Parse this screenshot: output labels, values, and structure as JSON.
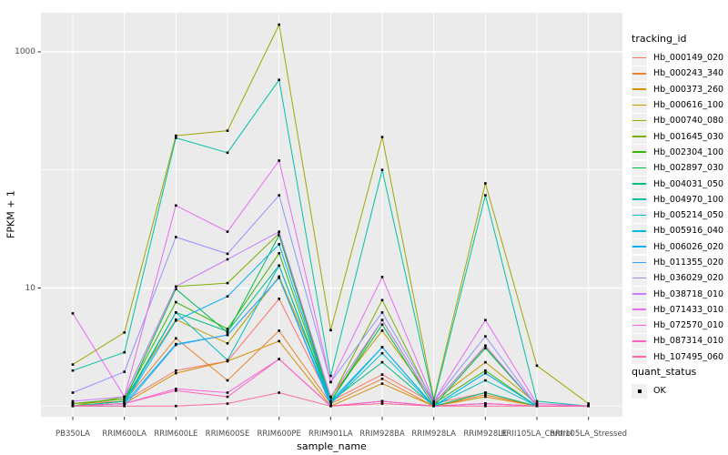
{
  "colors": {
    "panel_bg": "#EBEBEB",
    "gridline": "#FFFFFF",
    "tick_mark": "#333333",
    "tick_text": "#4D4D4D",
    "point": "#000000"
  },
  "chart_data": {
    "type": "line",
    "title": "",
    "xlabel": "sample_name",
    "ylabel": "FPKM + 1",
    "y_scale": "log10",
    "ylim": [
      1,
      2150
    ],
    "grid": true,
    "legend_position": "right",
    "legend_title": "tracking_id",
    "quant_legend": {
      "title": "quant_status",
      "ok_label": "OK"
    },
    "y_ticks": [
      {
        "label": "1000",
        "value": 1000
      },
      {
        "label": "10",
        "value": 10
      }
    ],
    "y_minor": [
      1,
      100
    ],
    "categories": [
      "PB350LA",
      "RRIM600LA",
      "RRIM600LE",
      "RRIM600SE",
      "RRIM600PE",
      "RRIM901LA",
      "RRIM928BA",
      "RRIM928LA",
      "RRIM928LE",
      "RRII105LA_Control",
      "RRII105LA_Stressed"
    ],
    "series": [
      {
        "name": "Hb_000149_020",
        "color": "#F8766D",
        "values": [
          1.05,
          1.1,
          2.0,
          2.4,
          8.1,
          1.1,
          1.85,
          1.05,
          1.3,
          1.0,
          1.0
        ]
      },
      {
        "name": "Hb_000243_340",
        "color": "#EA8331",
        "values": [
          1.0,
          1.1,
          3.75,
          1.65,
          4.35,
          1.05,
          1.7,
          1.0,
          1.25,
          1.0,
          1.0
        ]
      },
      {
        "name": "Hb_000373_260",
        "color": "#D89000",
        "values": [
          1.0,
          1.05,
          1.9,
          2.4,
          3.55,
          1.0,
          1.55,
          1.0,
          1.2,
          1.0,
          1.0
        ]
      },
      {
        "name": "Hb_000616_100",
        "color": "#C09B00",
        "values": [
          1.05,
          1.15,
          5.4,
          3.4,
          12.5,
          1.2,
          4.35,
          1.1,
          2.35,
          1.05,
          1.0
        ]
      },
      {
        "name": "Hb_000740_080",
        "color": "#A3A500",
        "values": [
          2.25,
          4.2,
          195,
          215,
          1700,
          4.4,
          190,
          1.15,
          77,
          2.2,
          1.05
        ]
      },
      {
        "name": "Hb_001645_030",
        "color": "#7CAE00",
        "values": [
          1.0,
          1.2,
          10.3,
          11.0,
          29,
          1.15,
          7.9,
          1.05,
          3.2,
          1.0,
          1.0
        ]
      },
      {
        "name": "Hb_002304_100",
        "color": "#39B600",
        "values": [
          1.05,
          1.15,
          7.6,
          4.5,
          19.7,
          1.1,
          5.35,
          1.05,
          2.0,
          1.0,
          1.0
        ]
      },
      {
        "name": "Hb_002897_030",
        "color": "#00BB4E",
        "values": [
          1.0,
          1.1,
          9.8,
          4.2,
          28,
          1.1,
          4.9,
          1.0,
          3.1,
          1.0,
          1.0
        ]
      },
      {
        "name": "Hb_004031_050",
        "color": "#00BF7D",
        "values": [
          1.0,
          1.1,
          6.2,
          4.3,
          15.5,
          1.1,
          2.35,
          1.0,
          1.3,
          1.0,
          1.0
        ]
      },
      {
        "name": "Hb_004970_100",
        "color": "#00C1A3",
        "values": [
          2.0,
          2.85,
          187,
          140,
          580,
          1.8,
          100,
          1.1,
          61,
          1.1,
          1.0
        ]
      },
      {
        "name": "Hb_005214_050",
        "color": "#00BFC4",
        "values": [
          1.0,
          1.05,
          6.2,
          2.45,
          15.5,
          1.05,
          2.8,
          1.0,
          1.65,
          1.0,
          1.0
        ]
      },
      {
        "name": "Hb_005916_040",
        "color": "#00BAE0",
        "values": [
          1.0,
          1.05,
          3.35,
          4.0,
          12.2,
          1.05,
          3.15,
          1.0,
          1.9,
          1.0,
          1.0
        ]
      },
      {
        "name": "Hb_006026_020",
        "color": "#00B0F6",
        "values": [
          1.0,
          1.05,
          5.3,
          8.5,
          23.5,
          1.1,
          3.15,
          1.0,
          1.9,
          1.0,
          1.0
        ]
      },
      {
        "name": "Hb_011355_020",
        "color": "#35A2FF",
        "values": [
          1.0,
          1.0,
          3.3,
          4.0,
          12.2,
          1.0,
          1.1,
          1.0,
          1.05,
          1.0,
          1.0
        ]
      },
      {
        "name": "Hb_036029_020",
        "color": "#9590FF",
        "values": [
          1.3,
          1.95,
          27,
          19.5,
          61,
          1.6,
          6.2,
          1.1,
          3.9,
          1.0,
          1.0
        ]
      },
      {
        "name": "Hb_038718_010",
        "color": "#C77CFF",
        "values": [
          1.1,
          1.2,
          10.3,
          17.5,
          30,
          1.2,
          5.35,
          1.05,
          3.25,
          1.0,
          1.0
        ]
      },
      {
        "name": "Hb_071433_010",
        "color": "#E76BF3",
        "values": [
          6.1,
          1.2,
          50,
          30,
          120,
          1.6,
          12.4,
          1.1,
          5.35,
          1.05,
          1.0
        ]
      },
      {
        "name": "Hb_072570_010",
        "color": "#FA62DB",
        "values": [
          1.0,
          1.05,
          1.4,
          1.3,
          2.5,
          1.0,
          1.1,
          1.0,
          1.05,
          1.0,
          1.0
        ]
      },
      {
        "name": "Hb_087314_010",
        "color": "#FF62BC",
        "values": [
          1.0,
          1.05,
          1.35,
          1.2,
          2.5,
          1.0,
          1.1,
          1.0,
          1.05,
          1.0,
          1.0
        ]
      },
      {
        "name": "Hb_107495_060",
        "color": "#FF6A98",
        "values": [
          1.0,
          1.0,
          1.0,
          1.05,
          1.3,
          1.0,
          1.05,
          1.0,
          1.0,
          1.0,
          1.0
        ]
      }
    ]
  }
}
